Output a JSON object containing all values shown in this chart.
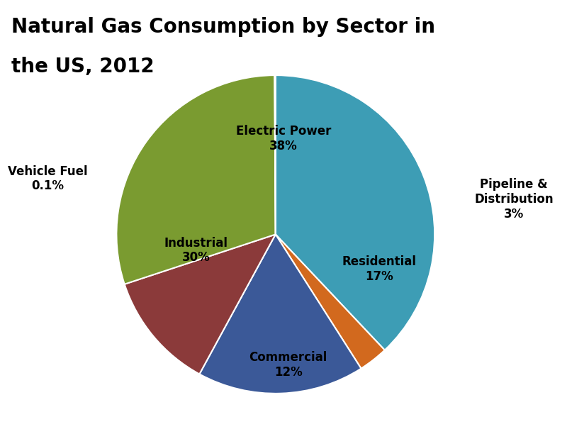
{
  "title_line1": "Natural Gas Consumption by Sector in",
  "title_line2": "the US, 2012",
  "title_fontsize": 20,
  "title_fontweight": "bold",
  "labels": [
    "Electric Power",
    "Pipeline &\nDistribution",
    "Residential",
    "Commercial",
    "Industrial",
    "Vehicle Fuel"
  ],
  "pct_labels": [
    "38%",
    "3%",
    "17%",
    "12%",
    "30%",
    "0.1%"
  ],
  "values": [
    38,
    3,
    17,
    12,
    30,
    0.1
  ],
  "colors": [
    "#3d9db5",
    "#d2691e",
    "#3b5998",
    "#8b3a3a",
    "#7a9b30",
    "#3d9db5"
  ],
  "edge_color": "#ffffff",
  "background_color": "#ffffff",
  "startangle": 90,
  "label_fontsize": 12,
  "label_positions": {
    "Electric Power": [
      0.05,
      0.6,
      "center"
    ],
    "Pipeline &\nDistribution": [
      1.25,
      0.22,
      "left"
    ],
    "Residential": [
      0.65,
      -0.22,
      "center"
    ],
    "Commercial": [
      0.08,
      -0.82,
      "center"
    ],
    "Industrial": [
      -0.5,
      -0.1,
      "center"
    ],
    "Vehicle Fuel": [
      -1.18,
      0.35,
      "right"
    ]
  }
}
